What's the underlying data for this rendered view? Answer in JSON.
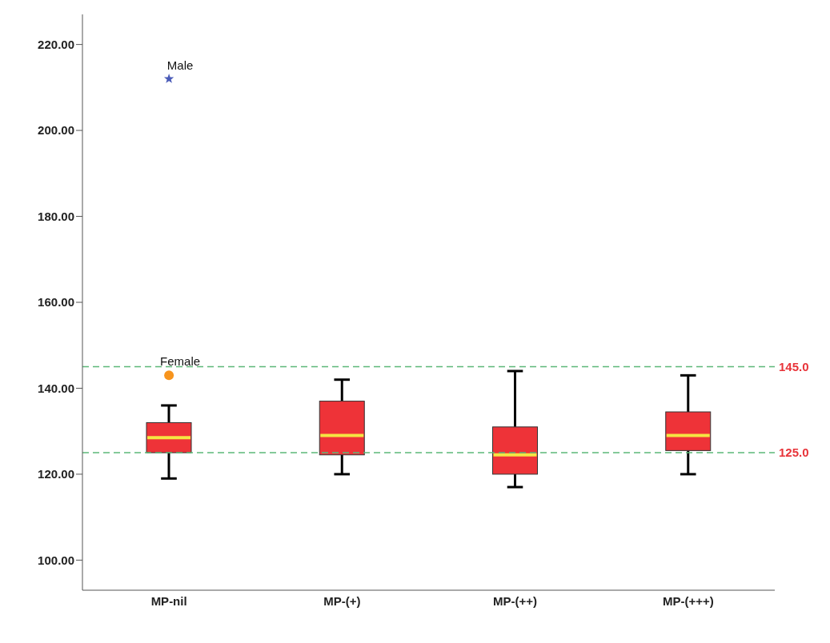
{
  "chart_data": {
    "type": "box",
    "categories": [
      "MP-nil",
      "MP-(+)",
      "MP-(++)",
      "MP-(+++)"
    ],
    "boxes": [
      {
        "low": 119,
        "q1": 125,
        "median": 128.5,
        "q3": 132,
        "high": 136
      },
      {
        "low": 120,
        "q1": 124.5,
        "median": 129,
        "q3": 137,
        "high": 142
      },
      {
        "low": 117,
        "q1": 120,
        "median": 124.5,
        "q3": 131,
        "high": 144
      },
      {
        "low": 120,
        "q1": 125.5,
        "median": 129,
        "q3": 134.5,
        "high": 143
      }
    ],
    "color": "#ee3338",
    "series": [
      {
        "type": "scatter",
        "x": [
          "MP-nil"
        ],
        "values": [
          143
        ],
        "color": "#f7941d",
        "marker": "circle"
      },
      {
        "type": "scatter",
        "x": [
          "MP-nil"
        ],
        "values": [
          212
        ],
        "color": "#4a5bb8",
        "marker": "star"
      }
    ],
    "annotations": [
      {
        "text": "Female",
        "x": "MP-nil",
        "y": 143
      },
      {
        "text": "Male",
        "x": "MP-nil",
        "y": 212
      }
    ],
    "ref_lines": [
      {
        "axis": "y",
        "value": 145,
        "label": "145.0",
        "color": "#5cb878",
        "line_style": "dashed"
      },
      {
        "axis": "y",
        "value": 125,
        "label": "125.0",
        "color": "#5cb878",
        "line_style": "dashed"
      }
    ],
    "ylim": [
      93,
      227
    ],
    "yticks": [
      {
        "value": 100,
        "label": "100.00"
      },
      {
        "value": 120,
        "label": "120.00"
      },
      {
        "value": 140,
        "label": "140.00"
      },
      {
        "value": 160,
        "label": "160.00"
      },
      {
        "value": 180,
        "label": "180.00"
      },
      {
        "value": 200,
        "label": "200.00"
      },
      {
        "value": 220,
        "label": "220.00"
      }
    ],
    "grid": false,
    "legend": false
  }
}
